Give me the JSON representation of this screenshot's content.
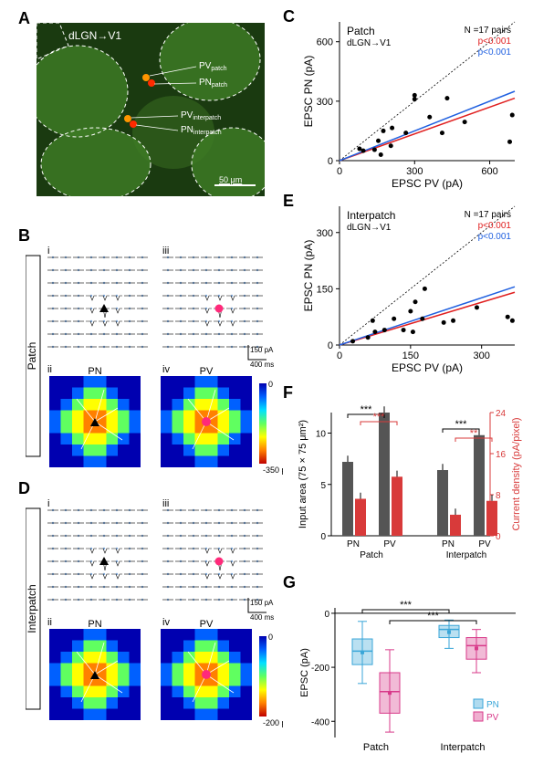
{
  "panelA": {
    "label": "A",
    "title": "dLGN→V1",
    "annotations": [
      "PVpatch",
      "PNpatch",
      "PVinterpatch",
      "PNinterpatch"
    ],
    "scalebar": "50 μm",
    "bg_color": "#2a5d1e",
    "patch_overlay": "#4fa030",
    "marker_colors": {
      "pv": "#ff9500",
      "pn": "#ff2a00"
    }
  },
  "panelB": {
    "label": "B",
    "side_label": "Patch",
    "sub_i": "i",
    "sub_ii": "ii",
    "sub_iii": "iii",
    "sub_iv": "iv",
    "col_PN": "PN",
    "col_PV": "PV",
    "scalebar_y": "150 pA",
    "scalebar_x": "400 ms",
    "heatmap_bg": "#0000b0",
    "colorbar": {
      "max_label": "0",
      "min_label": "-350 pA",
      "stops": [
        "#0000b0",
        "#0060ff",
        "#00e0ff",
        "#60ff60",
        "#ffff00",
        "#ff8000",
        "#c00000"
      ]
    },
    "grid_dot_color": "#7fa8d8",
    "pn_marker": "#000000",
    "pv_marker": "#ff2a7a"
  },
  "panelC": {
    "label": "C",
    "title": "Patch",
    "subtitle": "dLGN→V1",
    "n_label": "N =17 pairs",
    "p_red": "p<0.001",
    "p_blue": "p<0.001",
    "xlabel": "EPSC PV (pA)",
    "ylabel": "EPSC PN (pA)",
    "xlim": [
      0,
      700
    ],
    "ylim": [
      0,
      700
    ],
    "xticks": [
      0,
      300,
      600
    ],
    "yticks": [
      0,
      300,
      600
    ],
    "points": [
      [
        80,
        60
      ],
      [
        95,
        50
      ],
      [
        140,
        55
      ],
      [
        155,
        100
      ],
      [
        175,
        150
      ],
      [
        165,
        30
      ],
      [
        210,
        165
      ],
      [
        205,
        75
      ],
      [
        265,
        140
      ],
      [
        300,
        330
      ],
      [
        300,
        310
      ],
      [
        360,
        220
      ],
      [
        410,
        140
      ],
      [
        430,
        315
      ],
      [
        500,
        195
      ],
      [
        690,
        230
      ],
      [
        680,
        95
      ]
    ],
    "fit_red_slope": 0.45,
    "fit_blue_slope": 0.5,
    "point_color": "#000",
    "red": "#e02020",
    "blue": "#2060e0"
  },
  "panelD": {
    "label": "D",
    "side_label": "Interpatch",
    "sub_i": "i",
    "sub_ii": "ii",
    "sub_iii": "iii",
    "sub_iv": "iv",
    "col_PN": "PN",
    "col_PV": "PV",
    "scalebar_y": "150 pA",
    "scalebar_x": "400 ms",
    "colorbar": {
      "max_label": "0",
      "min_label": "-200 pA",
      "stops": [
        "#0000b0",
        "#0060ff",
        "#00e0ff",
        "#60ff60",
        "#ffff00",
        "#ff8000",
        "#c00000"
      ]
    }
  },
  "panelE": {
    "label": "E",
    "title": "Interpatch",
    "subtitle": "dLGN→V1",
    "n_label": "N =17 pairs",
    "p_red": "p<0.001",
    "p_blue": "p<0.001",
    "xlabel": "EPSC PV (pA)",
    "ylabel": "EPSC PN (pA)",
    "xlim": [
      0,
      370
    ],
    "ylim": [
      0,
      370
    ],
    "xticks": [
      0,
      150,
      300
    ],
    "yticks": [
      0,
      150,
      300
    ],
    "points": [
      [
        28,
        10
      ],
      [
        70,
        65
      ],
      [
        75,
        35
      ],
      [
        95,
        40
      ],
      [
        115,
        70
      ],
      [
        135,
        40
      ],
      [
        150,
        90
      ],
      [
        155,
        35
      ],
      [
        160,
        115
      ],
      [
        175,
        70
      ],
      [
        180,
        150
      ],
      [
        220,
        60
      ],
      [
        240,
        65
      ],
      [
        290,
        100
      ],
      [
        355,
        75
      ],
      [
        365,
        65
      ],
      [
        60,
        20
      ]
    ],
    "fit_red_slope": 0.38,
    "fit_blue_slope": 0.42,
    "point_color": "#000",
    "red": "#e02020",
    "blue": "#2060e0"
  },
  "panelF": {
    "label": "F",
    "ylabel_left": "Input area (75 × 75 μm²)",
    "ylabel_right": "Current density (pA/pixel)",
    "yticks_left": [
      0,
      5,
      10
    ],
    "yticks_right": [
      0,
      8,
      16,
      24
    ],
    "groups": [
      "PN",
      "PV",
      "PN",
      "PV"
    ],
    "group_headers": [
      "Patch",
      "Interpatch"
    ],
    "sig1": "***",
    "sig2": "***",
    "sig3": "***",
    "sig4": "**",
    "bars": {
      "patch_pn_area": 7.2,
      "patch_pn_cd": 7.2,
      "patch_pv_area": 12.0,
      "patch_pv_cd": 11.5,
      "inter_pn_area": 6.4,
      "inter_pn_cd": 4.1,
      "inter_pv_area": 9.8,
      "inter_pv_cd": 6.8
    },
    "err": 0.6,
    "color_area": "#555555",
    "color_cd": "#d83a3a"
  },
  "panelG": {
    "label": "G",
    "xlabel_groups": [
      "Patch",
      "Interpatch"
    ],
    "ylabel": "EPSC (pA)",
    "yticks": [
      0,
      -200,
      -400
    ],
    "sig1": "***",
    "sig2": "***",
    "legend": {
      "pn": "PN",
      "pv": "PV"
    },
    "pn_color": "#3aa6d8",
    "pv_color": "#d83a8a",
    "boxes": {
      "patch_pn": {
        "q1": -190,
        "med": -140,
        "q3": -95,
        "lo": -260,
        "hi": -30,
        "mean": -145
      },
      "patch_pv": {
        "q1": -370,
        "med": -290,
        "q3": -220,
        "lo": -440,
        "hi": -135,
        "mean": -295
      },
      "inter_pn": {
        "q1": -90,
        "med": -60,
        "q3": -45,
        "lo": -130,
        "hi": -25,
        "mean": -70
      },
      "inter_pv": {
        "q1": -170,
        "med": -120,
        "q3": -90,
        "lo": -220,
        "hi": -60,
        "mean": -130
      }
    }
  }
}
